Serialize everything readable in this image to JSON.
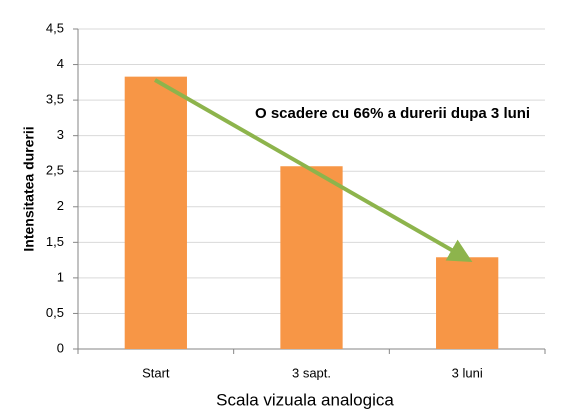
{
  "chart_data": {
    "type": "bar",
    "y_label": "Intensitatea durerii",
    "x_label": "Scala vizuala analogica",
    "annotation": "O scadere cu 66% a durerii dupa 3 luni",
    "categories": [
      "Start",
      "3 sapt.",
      "3 luni"
    ],
    "values": [
      3.83,
      2.57,
      1.29
    ],
    "color": "#f79646",
    "ylim": [
      0,
      4.5
    ],
    "yticks": [
      0,
      {
        "value": 0.5,
        "label": "0,5"
      },
      1,
      {
        "value": 1.5,
        "label": "1,5"
      },
      2,
      {
        "value": 2.5,
        "label": "2,5"
      },
      3,
      {
        "value": 3.5,
        "label": "3,5"
      },
      4,
      {
        "value": 4.5,
        "label": "4,5"
      }
    ],
    "grid": true
  }
}
